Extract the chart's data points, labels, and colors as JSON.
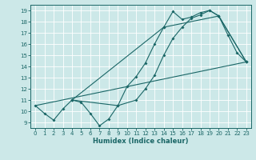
{
  "xlabel": "Humidex (Indice chaleur)",
  "bg_color": "#cce8e8",
  "line_color": "#1a6666",
  "grid_color": "#b8d8d8",
  "xlim": [
    -0.5,
    23.5
  ],
  "ylim": [
    8.5,
    19.5
  ],
  "xticks": [
    0,
    1,
    2,
    3,
    4,
    5,
    6,
    7,
    8,
    9,
    10,
    11,
    12,
    13,
    14,
    15,
    16,
    17,
    18,
    19,
    20,
    21,
    22,
    23
  ],
  "yticks": [
    9,
    10,
    11,
    12,
    13,
    14,
    15,
    16,
    17,
    18,
    19
  ],
  "curve1_x": [
    0,
    1,
    2,
    3,
    4,
    5,
    6,
    7,
    8,
    9,
    10,
    11,
    12,
    13,
    14,
    15,
    16,
    17,
    18,
    19,
    20,
    21,
    22,
    23
  ],
  "curve1_y": [
    10.5,
    9.8,
    9.2,
    10.2,
    11.0,
    10.8,
    9.8,
    8.7,
    9.3,
    10.5,
    12.2,
    13.1,
    14.3,
    16.0,
    17.5,
    18.9,
    18.2,
    18.4,
    18.8,
    19.0,
    18.5,
    16.8,
    15.2,
    14.4
  ],
  "curve2_x": [
    4,
    9,
    11,
    12,
    13,
    14,
    15,
    16,
    17,
    18,
    19,
    20,
    23
  ],
  "curve2_y": [
    11.0,
    10.5,
    11.0,
    12.0,
    13.2,
    15.0,
    16.5,
    17.5,
    18.3,
    18.6,
    19.0,
    18.5,
    14.4
  ],
  "curve3_x": [
    4,
    14,
    20,
    23
  ],
  "curve3_y": [
    11.0,
    17.5,
    18.5,
    14.4
  ],
  "curve4_x": [
    0,
    23
  ],
  "curve4_y": [
    10.5,
    14.4
  ]
}
